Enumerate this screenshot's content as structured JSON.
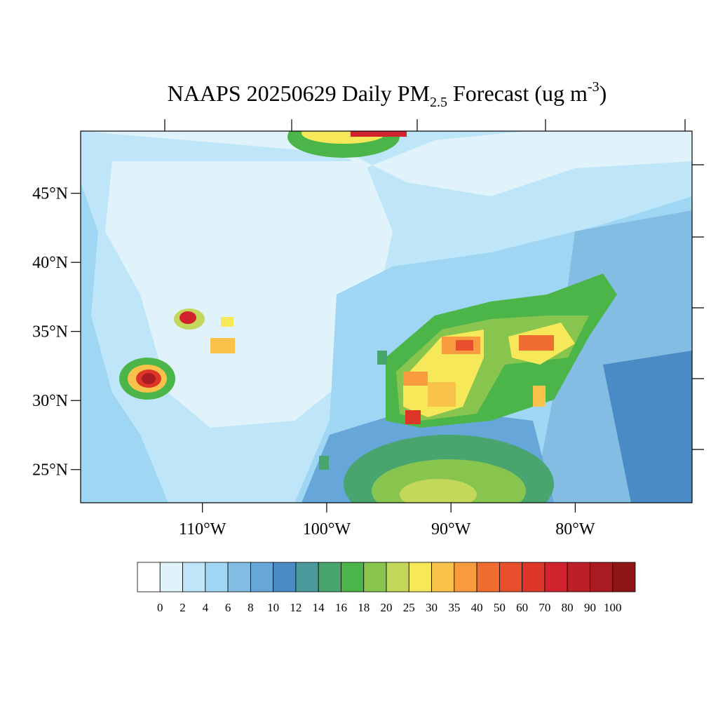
{
  "chart_data": {
    "type": "map",
    "title": {
      "main": "NAAPS 20250629 Daily PM",
      "subscript": "2.5",
      "middle": " Forecast (ug m",
      "superscript": "-3",
      "end": ")"
    },
    "xlim": [
      -119.8,
      -70.6
    ],
    "ylim": [
      22.6,
      49.5
    ],
    "xticks": [
      {
        "value": -110,
        "label": "110°W"
      },
      {
        "value": -100,
        "label": "100°W"
      },
      {
        "value": -90,
        "label": "90°W"
      },
      {
        "value": -80,
        "label": "80°W"
      }
    ],
    "yticks": [
      {
        "value": 45,
        "label": "45°N"
      },
      {
        "value": 40,
        "label": "40°N"
      },
      {
        "value": 35,
        "label": "35°N"
      },
      {
        "value": 30,
        "label": "30°N"
      },
      {
        "value": 25,
        "label": "25°N"
      }
    ],
    "colorbar": {
      "levels": [
        0,
        2,
        4,
        6,
        8,
        10,
        12,
        14,
        16,
        18,
        20,
        25,
        30,
        35,
        40,
        50,
        60,
        70,
        80,
        90,
        100
      ],
      "colors": [
        "#ffffff",
        "#e0f3fb",
        "#bfe6f8",
        "#9fd6f3",
        "#84bde4",
        "#67a6d9",
        "#4a8bc6",
        "#4a9a9c",
        "#48a56e",
        "#4cb54a",
        "#88c54f",
        "#c3d75a",
        "#f7e85a",
        "#f9c24b",
        "#f89a3e",
        "#f16d2f",
        "#e84f2c",
        "#dd3528",
        "#d0232d",
        "#bb1f28",
        "#a91a22",
        "#8f1617"
      ]
    }
  }
}
